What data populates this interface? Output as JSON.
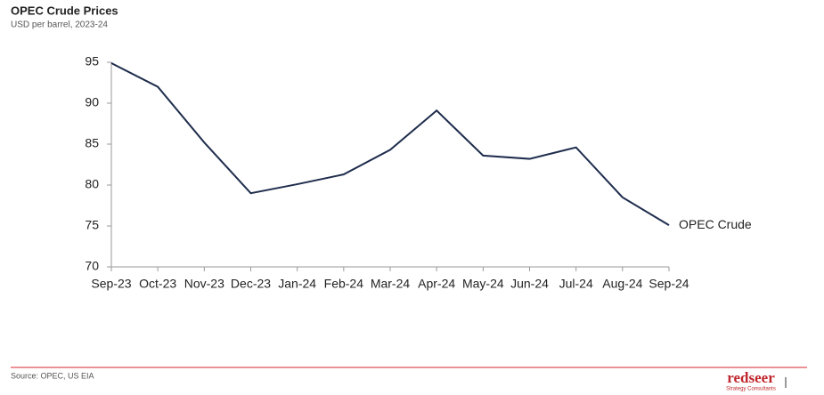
{
  "chart_data": {
    "type": "line",
    "title": "OPEC Crude Prices",
    "subtitle": "USD per barrel, 2023-24",
    "categories": [
      "Sep-23",
      "Oct-23",
      "Nov-23",
      "Dec-23",
      "Jan-24",
      "Feb-24",
      "Mar-24",
      "Apr-24",
      "May-24",
      "Jun-24",
      "Jul-24",
      "Aug-24",
      "Sep-24"
    ],
    "series": [
      {
        "name": "OPEC Crude",
        "color": "#1f2d4d",
        "values": [
          94.9,
          92.0,
          85.2,
          79.0,
          80.1,
          81.3,
          84.3,
          89.1,
          83.6,
          83.2,
          84.6,
          78.5,
          75.1
        ]
      }
    ],
    "ylim": [
      70,
      95
    ],
    "yticks": [
      70,
      75,
      80,
      85,
      90,
      95
    ],
    "grid": false
  },
  "footer": {
    "source": "Source: OPEC, US EIA",
    "logo": "redseer",
    "logo_tagline": "Strategy Consultants"
  }
}
